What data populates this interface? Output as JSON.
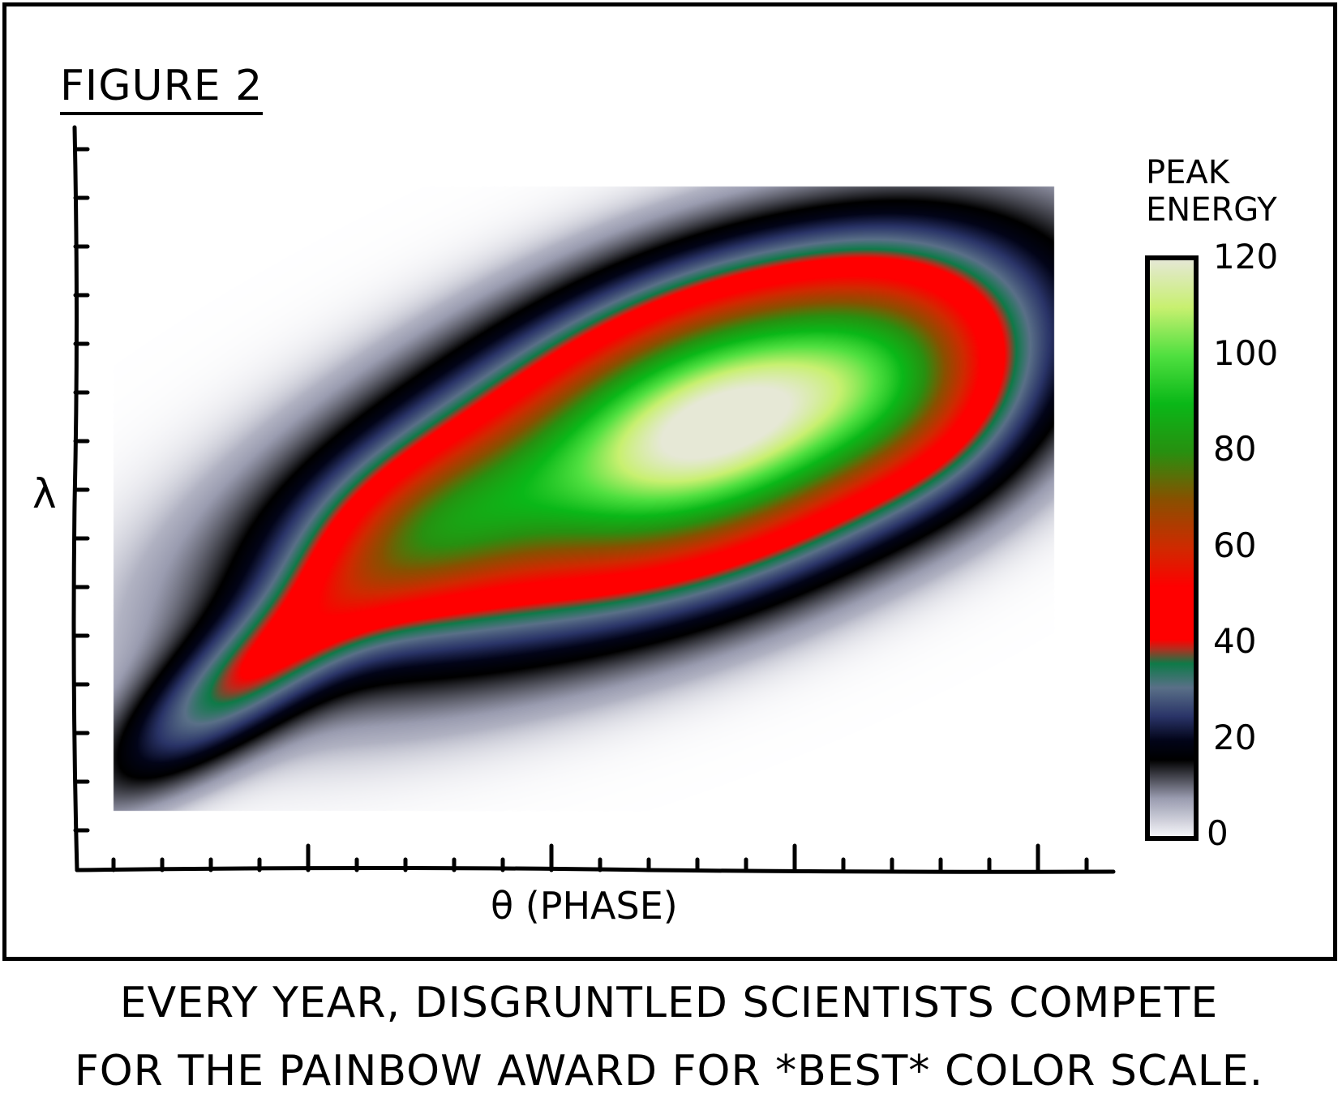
{
  "title": "FIGURE 2",
  "caption": [
    "EVERY YEAR, DISGRUNTLED SCIENTISTS COMPETE",
    "FOR THE PAINBOW AWARD FOR *BEST* COLOR SCALE."
  ],
  "chart_data": {
    "type": "heatmap",
    "title": "FIGURE 2",
    "xlabel": "θ (PHASE)",
    "ylabel": "λ",
    "colorbar": {
      "label": "PEAK ENERGY",
      "range": [
        0,
        120
      ],
      "ticks": [
        "120",
        "100",
        "80",
        "60",
        "40",
        "20",
        "0"
      ],
      "colormap": [
        {
          "value": 0,
          "color": "#f6f6fa"
        },
        {
          "value": 8,
          "color": "#9a9cb0"
        },
        {
          "value": 16,
          "color": "#000000"
        },
        {
          "value": 20,
          "color": "#020418"
        },
        {
          "value": 25,
          "color": "#2a3468"
        },
        {
          "value": 31,
          "color": "#5a7088"
        },
        {
          "value": 36,
          "color": "#0e7a48"
        },
        {
          "value": 39,
          "color": "#b03020"
        },
        {
          "value": 41,
          "color": "#ff0000"
        },
        {
          "value": 52,
          "color": "#ff0000"
        },
        {
          "value": 60,
          "color": "#d02a00"
        },
        {
          "value": 70,
          "color": "#8a5000"
        },
        {
          "value": 80,
          "color": "#289010"
        },
        {
          "value": 90,
          "color": "#0ab818"
        },
        {
          "value": 100,
          "color": "#50e040"
        },
        {
          "value": 110,
          "color": "#c8f070"
        },
        {
          "value": 120,
          "color": "#e6e8d6"
        }
      ]
    }
  }
}
